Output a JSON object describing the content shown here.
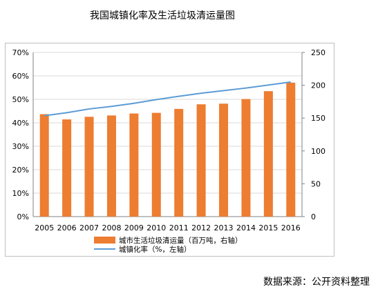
{
  "title": "我国城镇化率及生活垃圾清运量图",
  "source": "数据来源：公开资料整理",
  "chart_data": {
    "type": "bar+line",
    "categories": [
      "2005",
      "2006",
      "2007",
      "2008",
      "2009",
      "2010",
      "2011",
      "2012",
      "2013",
      "2014",
      "2015",
      "2016"
    ],
    "series": [
      {
        "name": "城市生活垃圾清运量（百万吨，右轴）",
        "type": "bar",
        "axis": "right",
        "color": "#ed7d31",
        "values": [
          156,
          148,
          152,
          154,
          157,
          158,
          164,
          171,
          172,
          179,
          191,
          204
        ]
      },
      {
        "name": "城镇化率（%，左轴）",
        "type": "line",
        "axis": "left",
        "color": "#5b9bd5",
        "values": [
          43,
          44.3,
          45.9,
          47.0,
          48.3,
          49.9,
          51.3,
          52.6,
          53.7,
          54.8,
          56.1,
          57.4
        ]
      }
    ],
    "y_left": {
      "min": 0,
      "max": 70,
      "ticks": [
        "0%",
        "10%",
        "20%",
        "30%",
        "40%",
        "50%",
        "60%",
        "70%"
      ]
    },
    "y_right": {
      "min": 0,
      "max": 250,
      "ticks": [
        "0",
        "50",
        "100",
        "150",
        "200",
        "250"
      ]
    },
    "grid": true,
    "legend": "bottom"
  }
}
